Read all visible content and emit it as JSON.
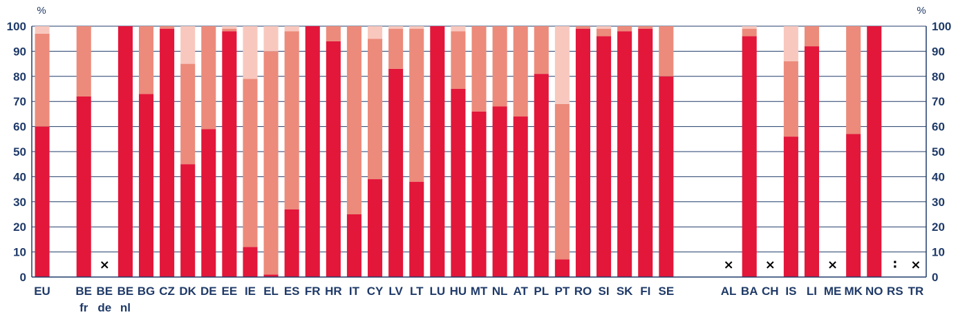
{
  "chart_data": {
    "type": "bar",
    "stacked": true,
    "ylabel": "%",
    "ylim": [
      0,
      100
    ],
    "yticks": [
      0,
      10,
      20,
      30,
      40,
      50,
      60,
      70,
      80,
      90,
      100
    ],
    "grid": true,
    "colors": [
      "#e2173a",
      "#ec8b7b",
      "#f8c8be"
    ],
    "categories": [
      {
        "label": "EU",
        "values": [
          60,
          37,
          3
        ]
      },
      {
        "label": "",
        "values": null
      },
      {
        "label": "BE",
        "sub": "fr",
        "values": [
          72,
          28,
          0
        ]
      },
      {
        "label": "BE",
        "sub": "de",
        "values": null,
        "marker": "x"
      },
      {
        "label": "BE",
        "sub": "nl",
        "values": [
          100,
          0,
          0
        ]
      },
      {
        "label": "BG",
        "values": [
          73,
          27,
          0
        ]
      },
      {
        "label": "CZ",
        "values": [
          99,
          1,
          0
        ]
      },
      {
        "label": "DK",
        "values": [
          45,
          40,
          15
        ]
      },
      {
        "label": "DE",
        "values": [
          59,
          41,
          0
        ]
      },
      {
        "label": "EE",
        "values": [
          98,
          1,
          1
        ]
      },
      {
        "label": "IE",
        "values": [
          12,
          67,
          21
        ]
      },
      {
        "label": "EL",
        "values": [
          1,
          89,
          10
        ]
      },
      {
        "label": "ES",
        "values": [
          27,
          71,
          2
        ]
      },
      {
        "label": "FR",
        "values": [
          100,
          0,
          0
        ]
      },
      {
        "label": "HR",
        "values": [
          94,
          6,
          0
        ]
      },
      {
        "label": "IT",
        "values": [
          25,
          75,
          0
        ]
      },
      {
        "label": "CY",
        "values": [
          39,
          56,
          5
        ]
      },
      {
        "label": "LV",
        "values": [
          83,
          16,
          1
        ]
      },
      {
        "label": "LT",
        "values": [
          38,
          61,
          1
        ]
      },
      {
        "label": "LU",
        "values": [
          100,
          0,
          0
        ]
      },
      {
        "label": "HU",
        "values": [
          75,
          23,
          2
        ]
      },
      {
        "label": "MT",
        "values": [
          66,
          34,
          0
        ]
      },
      {
        "label": "NL",
        "values": [
          68,
          32,
          0
        ]
      },
      {
        "label": "AT",
        "values": [
          64,
          36,
          0
        ]
      },
      {
        "label": "PL",
        "values": [
          81,
          19,
          0
        ]
      },
      {
        "label": "PT",
        "values": [
          7,
          62,
          31
        ]
      },
      {
        "label": "RO",
        "values": [
          99,
          1,
          0
        ]
      },
      {
        "label": "SI",
        "values": [
          96,
          3,
          1
        ]
      },
      {
        "label": "SK",
        "values": [
          98,
          2,
          0
        ]
      },
      {
        "label": "FI",
        "values": [
          99,
          1,
          0
        ]
      },
      {
        "label": "SE",
        "values": [
          80,
          20,
          0
        ]
      },
      {
        "label": "",
        "values": null
      },
      {
        "label": "",
        "values": null
      },
      {
        "label": "AL",
        "values": null,
        "marker": "x"
      },
      {
        "label": "BA",
        "values": [
          96,
          3,
          1
        ]
      },
      {
        "label": "CH",
        "values": null,
        "marker": "x"
      },
      {
        "label": "IS",
        "values": [
          56,
          30,
          14
        ]
      },
      {
        "label": "LI",
        "values": [
          92,
          8,
          0
        ]
      },
      {
        "label": "ME",
        "values": null,
        "marker": "x"
      },
      {
        "label": "MK",
        "values": [
          57,
          43,
          0
        ]
      },
      {
        "label": "NO",
        "values": [
          100,
          0,
          0
        ]
      },
      {
        "label": "RS",
        "values": null,
        "marker": ":"
      },
      {
        "label": "TR",
        "values": null,
        "marker": "x"
      }
    ]
  }
}
